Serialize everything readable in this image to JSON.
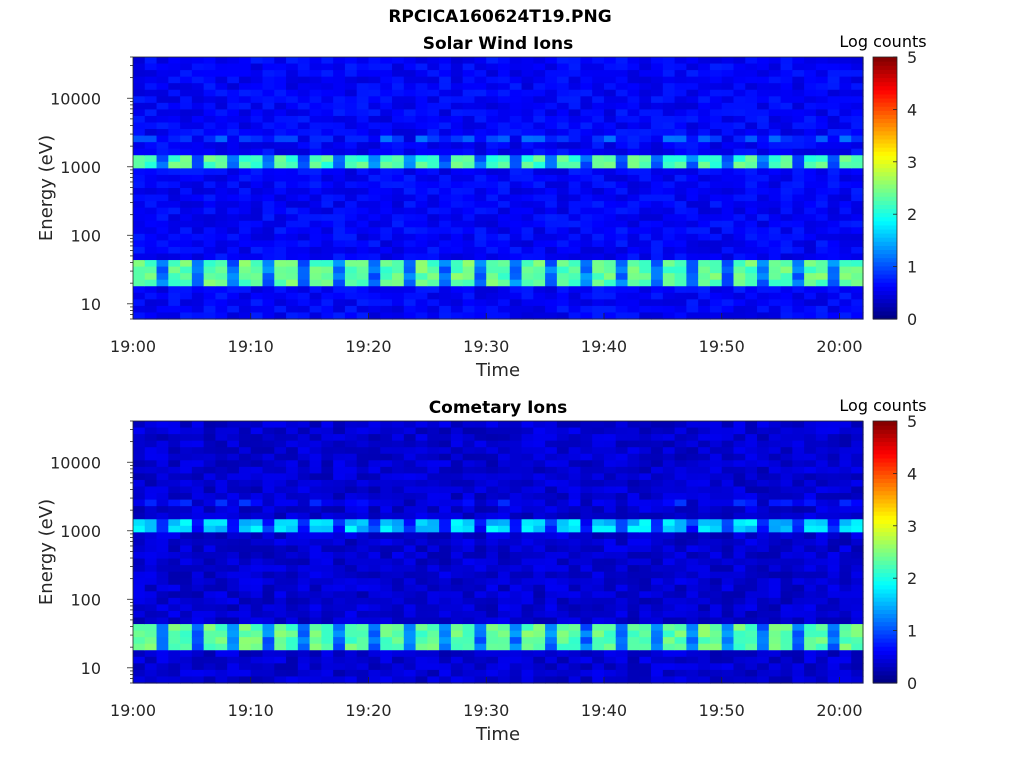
{
  "page": {
    "title": "RPCICA160624T19.PNG"
  },
  "chart_data": [
    {
      "type": "heatmap",
      "title": "Solar Wind Ions",
      "xlabel": "Time",
      "ylabel": "Energy (eV)",
      "y_scale": "log",
      "ylim": [
        6,
        40000
      ],
      "xlim": [
        "19:00",
        "20:02"
      ],
      "xticks": [
        "19:00",
        "19:10",
        "19:20",
        "19:30",
        "19:40",
        "19:50",
        "20:00"
      ],
      "yticks": [
        "10",
        "100",
        "1000",
        "10000"
      ],
      "colorbar": {
        "label": "Log counts",
        "range": [
          0,
          5
        ],
        "ticks": [
          "0",
          "1",
          "2",
          "3",
          "4",
          "5"
        ],
        "colormap": "jet"
      },
      "bands": [
        {
          "energy_eV": [
            1000,
            1450
          ],
          "peak_log_counts": 2.5,
          "intermittent": true
        },
        {
          "energy_eV": [
            2200,
            2900
          ],
          "peak_log_counts": 1.2,
          "intermittent": true
        },
        {
          "energy_eV": [
            18,
            45
          ],
          "peak_log_counts": 2.6,
          "intermittent": true
        }
      ],
      "background_log_counts": 0.6
    },
    {
      "type": "heatmap",
      "title": "Cometary Ions",
      "xlabel": "Time",
      "ylabel": "Energy (eV)",
      "y_scale": "log",
      "ylim": [
        6,
        40000
      ],
      "xlim": [
        "19:00",
        "20:02"
      ],
      "xticks": [
        "19:00",
        "19:10",
        "19:20",
        "19:30",
        "19:40",
        "19:50",
        "20:00"
      ],
      "yticks": [
        "10",
        "100",
        "1000",
        "10000"
      ],
      "colorbar": {
        "label": "Log counts",
        "range": [
          0,
          5
        ],
        "ticks": [
          "0",
          "1",
          "2",
          "3",
          "4",
          "5"
        ],
        "colormap": "jet"
      },
      "bands": [
        {
          "energy_eV": [
            1000,
            1400
          ],
          "peak_log_counts": 1.9,
          "intermittent": true
        },
        {
          "energy_eV": [
            2200,
            2800
          ],
          "peak_log_counts": 0.9,
          "intermittent": true
        },
        {
          "energy_eV": [
            18,
            45
          ],
          "peak_log_counts": 2.6,
          "intermittent": true
        }
      ],
      "background_log_counts": 0.4
    }
  ]
}
